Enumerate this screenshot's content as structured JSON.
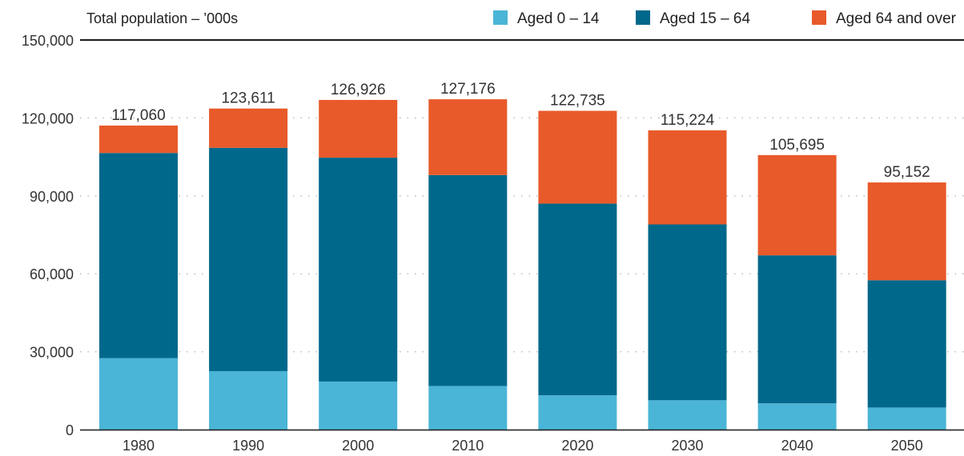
{
  "chart_data": {
    "type": "bar",
    "stacked": true,
    "title": "Total population – ’000s",
    "categories": [
      "1980",
      "1990",
      "2000",
      "2010",
      "2020",
      "2030",
      "2040",
      "2050"
    ],
    "series": [
      {
        "name": "Aged 0 – 14",
        "color": "#4ab5d6",
        "values": [
          27500,
          22500,
          18500,
          16800,
          13200,
          11300,
          10100,
          8500
        ]
      },
      {
        "name": "Aged 15 – 64",
        "color": "#00688b",
        "values": [
          79000,
          86000,
          86200,
          81200,
          73800,
          67700,
          57000,
          49000
        ]
      },
      {
        "name": "Aged 64 and over",
        "color": "#e85a2a",
        "values": [
          10560,
          15111,
          22226,
          29176,
          35735,
          36224,
          38595,
          37652
        ]
      }
    ],
    "totals": [
      "117,060",
      "123,611",
      "126,926",
      "127,176",
      "122,735",
      "115,224",
      "105,695",
      "95,152"
    ],
    "ylim": [
      0,
      150000
    ],
    "yticks": [
      0,
      30000,
      60000,
      90000,
      120000,
      150000
    ],
    "ytick_labels": [
      "0",
      "30,000",
      "60,000",
      "90,000",
      "120,000",
      "150,000"
    ],
    "xlabel": "",
    "ylabel": "",
    "grid": "dotted horizontal",
    "legend_position": "top-right"
  }
}
